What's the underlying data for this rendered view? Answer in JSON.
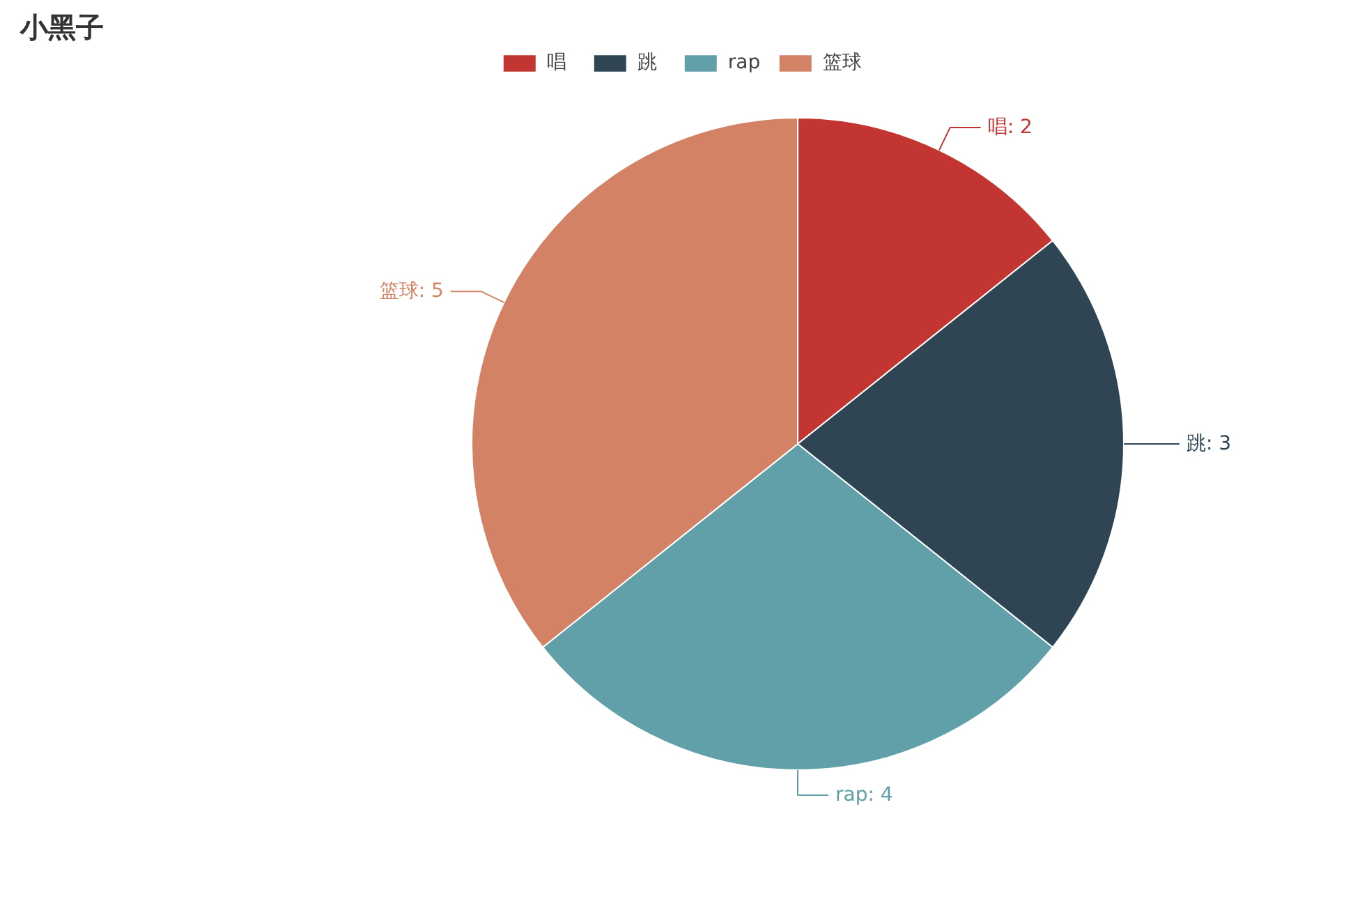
{
  "chart_data": {
    "type": "pie",
    "title": "小黑子",
    "categories": [
      "唱",
      "跳",
      "rap",
      "篮球"
    ],
    "values": [
      2,
      3,
      4,
      5
    ],
    "colors": [
      "#c23531",
      "#2f4554",
      "#61a0a8",
      "#d48265"
    ],
    "value_labels": [
      "唱: 2",
      "跳: 3",
      "rap: 4",
      "篮球: 5"
    ],
    "legend": "top"
  }
}
